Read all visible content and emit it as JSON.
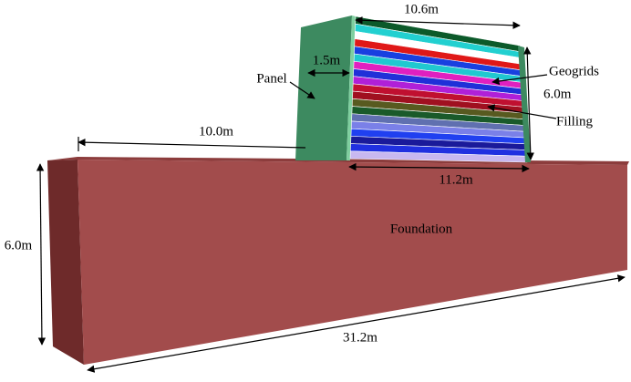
{
  "labels": {
    "top_width": "10.6m",
    "panel_thickness": "1.5m",
    "panel": "Panel",
    "geogrids": "Geogrids",
    "wall_height": "6.0m",
    "filling": "Filling",
    "offset": "10.0m",
    "base_width": "11.2m",
    "foundation": "Foundation",
    "foundation_height": "6.0m",
    "foundation_length": "31.2m"
  }
}
